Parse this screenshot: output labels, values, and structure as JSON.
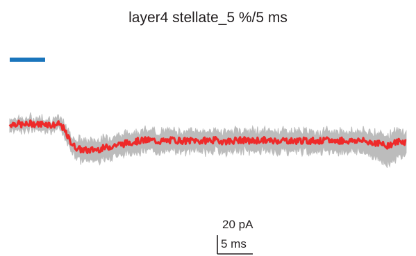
{
  "title": "layer4 stellate_5 %/5 ms",
  "chart_data": {
    "type": "line",
    "title": "layer4 stellate_5 %/5 ms",
    "xlabel": "",
    "ylabel": "",
    "units": {
      "x": "ms",
      "y": "pA"
    },
    "xlim": [
      0,
      56.5
    ],
    "ylim": [
      -100,
      15
    ],
    "grid": false,
    "legend": "none",
    "stimulus": {
      "start": 0,
      "end": 5,
      "label": "",
      "color": "#1a75bc"
    },
    "scale_bar": {
      "y_value": 20,
      "y_label": "20 pA",
      "x_value": 5,
      "x_label": "5 ms"
    },
    "series": [
      {
        "role": "mean",
        "color": "#ee2a2a",
        "x": [
          0,
          1,
          2,
          3,
          4,
          5,
          6,
          7,
          7.5,
          8,
          9,
          10,
          11,
          12,
          13,
          14,
          15,
          16,
          17,
          18,
          19,
          20,
          21,
          22,
          23,
          24,
          25,
          26,
          27,
          28,
          29,
          30,
          31,
          32,
          33,
          34,
          35,
          36,
          37,
          38,
          39,
          40,
          41,
          42,
          43,
          44,
          45,
          46,
          47,
          48,
          49,
          50,
          51,
          52,
          53,
          54,
          55,
          56
        ],
        "y": [
          -3,
          -2,
          -4,
          -2,
          -3,
          -2,
          -4,
          -3,
          -6,
          -14,
          -26,
          -30,
          -31,
          -30,
          -29,
          -27,
          -25,
          -24,
          -22,
          -21,
          -20,
          -20,
          -21,
          -21,
          -20,
          -20,
          -21,
          -20,
          -21,
          -20,
          -20,
          -21,
          -21,
          -20,
          -20,
          -21,
          -20,
          -20,
          -21,
          -20,
          -20,
          -21,
          -20,
          -21,
          -20,
          -21,
          -20,
          -21,
          -20,
          -21,
          -20,
          -21,
          -22,
          -23,
          -26,
          -24,
          -21,
          -22
        ]
      },
      {
        "role": "sem-band",
        "color": "#bcbcbc",
        "x": [
          0,
          1,
          2,
          3,
          4,
          5,
          6,
          7,
          7.5,
          8,
          9,
          10,
          11,
          12,
          13,
          14,
          15,
          16,
          17,
          18,
          19,
          20,
          21,
          22,
          23,
          24,
          25,
          26,
          27,
          28,
          29,
          30,
          31,
          32,
          33,
          34,
          35,
          36,
          37,
          38,
          39,
          40,
          41,
          42,
          43,
          44,
          45,
          46,
          47,
          48,
          49,
          50,
          51,
          52,
          53,
          54,
          55,
          56
        ],
        "lower": [
          -9,
          -8,
          -10,
          -8,
          -9,
          -8,
          -10,
          -9,
          -12,
          -21,
          -34,
          -41,
          -42,
          -41,
          -40,
          -38,
          -36,
          -35,
          -33,
          -32,
          -31,
          -31,
          -32,
          -32,
          -31,
          -31,
          -32,
          -31,
          -32,
          -31,
          -31,
          -32,
          -32,
          -31,
          -31,
          -32,
          -31,
          -31,
          -32,
          -31,
          -31,
          -32,
          -31,
          -32,
          -31,
          -32,
          -31,
          -32,
          -31,
          -32,
          -31,
          -33,
          -36,
          -40,
          -45,
          -43,
          -37,
          -36
        ],
        "upper": [
          3,
          4,
          2,
          4,
          3,
          4,
          2,
          3,
          0,
          -7,
          -18,
          -20,
          -21,
          -20,
          -19,
          -17,
          -15,
          -14,
          -12,
          -11,
          -10,
          -10,
          -11,
          -11,
          -10,
          -10,
          -11,
          -10,
          -11,
          -10,
          -10,
          -11,
          -11,
          -10,
          -10,
          -11,
          -10,
          -10,
          -11,
          -10,
          -10,
          -11,
          -10,
          -11,
          -10,
          -11,
          -10,
          -11,
          -10,
          -11,
          -10,
          -11,
          -11,
          -12,
          -14,
          -13,
          -10,
          -11
        ]
      }
    ]
  }
}
